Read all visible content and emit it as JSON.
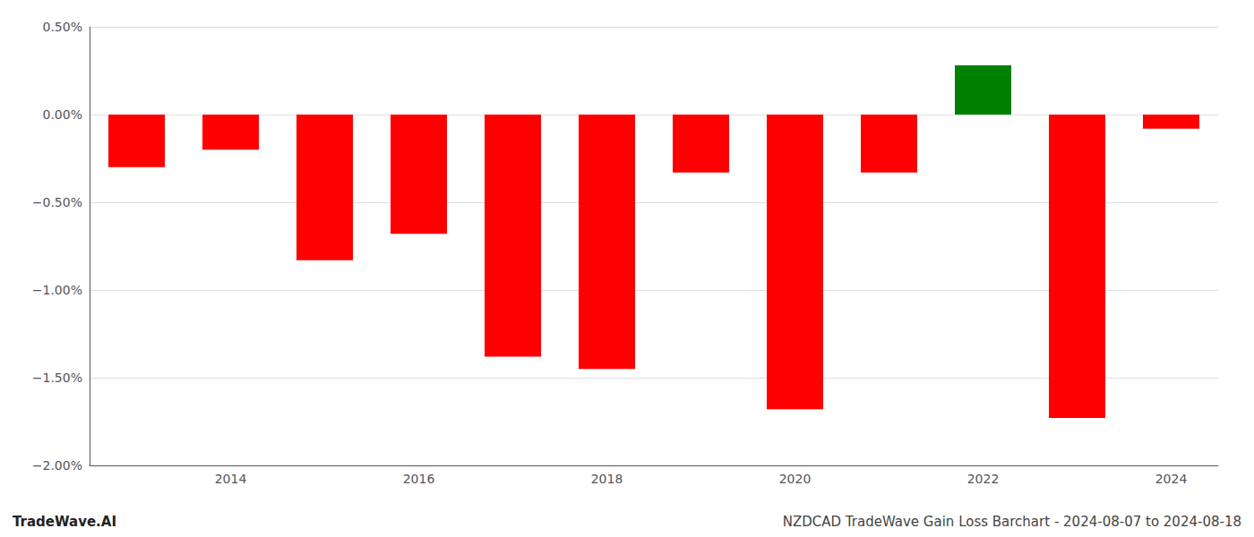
{
  "chart_data": {
    "type": "bar",
    "categories": [
      null,
      "2014",
      null,
      "2016",
      null,
      "2018",
      null,
      "2020",
      null,
      "2022",
      null,
      "2024"
    ],
    "values": [
      -0.3,
      -0.2,
      -0.83,
      -0.68,
      -1.38,
      -1.45,
      -0.33,
      -1.68,
      -0.33,
      0.28,
      -1.73,
      -0.08
    ],
    "colors": [
      "#ff0000",
      "#ff0000",
      "#ff0000",
      "#ff0000",
      "#ff0000",
      "#ff0000",
      "#ff0000",
      "#ff0000",
      "#ff0000",
      "#008000",
      "#ff0000",
      "#ff0000"
    ],
    "ylim": [
      -2.0,
      0.5
    ],
    "yticks": [
      {
        "value": -2.0,
        "label": "−2.00%"
      },
      {
        "value": -1.5,
        "label": "−1.50%"
      },
      {
        "value": -1.0,
        "label": "−1.00%"
      },
      {
        "value": -0.5,
        "label": "−0.50%"
      },
      {
        "value": 0.0,
        "label": "0.00%"
      },
      {
        "value": 0.5,
        "label": "0.50%"
      }
    ],
    "grid": true,
    "annotations": [
      "TradeWave.AI",
      "NZDCAD TradeWave Gain Loss Barchart - 2024-08-07 to 2024-08-18"
    ]
  }
}
